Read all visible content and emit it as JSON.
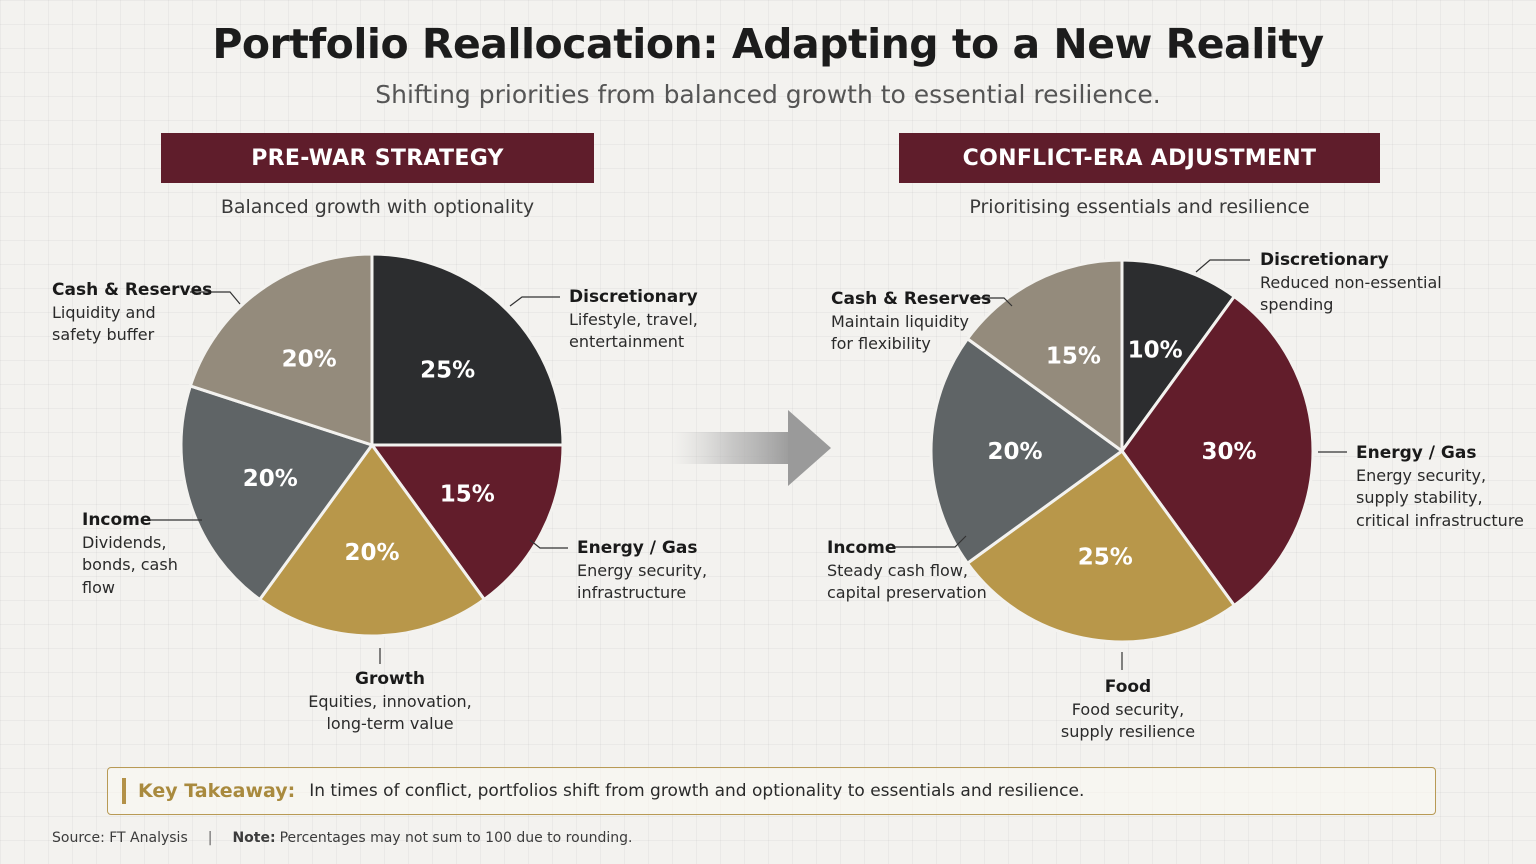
{
  "header": {
    "title": "Portfolio Reallocation: Adapting to a New Reality",
    "subtitle": "Shifting priorities from balanced growth to essential resilience."
  },
  "chart_data": [
    {
      "type": "pie",
      "title": "PRE-WAR STRATEGY",
      "subtitle": "Balanced growth with optionality",
      "slices": [
        {
          "name": "Discretionary",
          "value": 25,
          "label": "25%",
          "color": "#2c2d2f",
          "desc": "Lifestyle, travel,\nentertainment"
        },
        {
          "name": "Energy / Gas",
          "value": 15,
          "label": "15%",
          "color": "#621d2b",
          "desc": "Energy security,\ninfrastructure"
        },
        {
          "name": "Growth",
          "value": 20,
          "label": "20%",
          "color": "#b8974a",
          "desc": "Equities, innovation,\nlong-term value"
        },
        {
          "name": "Income",
          "value": 20,
          "label": "20%",
          "color": "#5f6466",
          "desc": "Dividends,\nbonds, cash\nflow"
        },
        {
          "name": "Cash & Reserves",
          "value": 20,
          "label": "20%",
          "color": "#948b7c",
          "desc": "Liquidity and\nsafety buffer"
        }
      ]
    },
    {
      "type": "pie",
      "title": "CONFLICT-ERA ADJUSTMENT",
      "subtitle": "Prioritising essentials and resilience",
      "slices": [
        {
          "name": "Discretionary",
          "value": 10,
          "label": "10%",
          "color": "#2c2d2f",
          "desc": "Reduced non-essential\nspending"
        },
        {
          "name": "Energy / Gas",
          "value": 30,
          "label": "30%",
          "color": "#621d2b",
          "desc": "Energy security,\nsupply stability,\ncritical infrastructure"
        },
        {
          "name": "Food",
          "value": 25,
          "label": "25%",
          "color": "#b8974a",
          "desc": "Food security,\nsupply resilience"
        },
        {
          "name": "Income",
          "value": 20,
          "label": "20%",
          "color": "#5f6466",
          "desc": "Steady cash flow,\ncapital preservation"
        },
        {
          "name": "Cash & Reserves",
          "value": 15,
          "label": "15%",
          "color": "#948b7c",
          "desc": "Maintain liquidity\nfor flexibility"
        }
      ]
    }
  ],
  "takeaway": {
    "label": "Key Takeaway:",
    "text": "In times of conflict, portfolios shift from growth and optionality to essentials and resilience."
  },
  "footer": {
    "source": "Source: FT Analysis",
    "separator": "|",
    "note_label": "Note:",
    "note_text": "Percentages may not sum to 100 due to rounding."
  }
}
